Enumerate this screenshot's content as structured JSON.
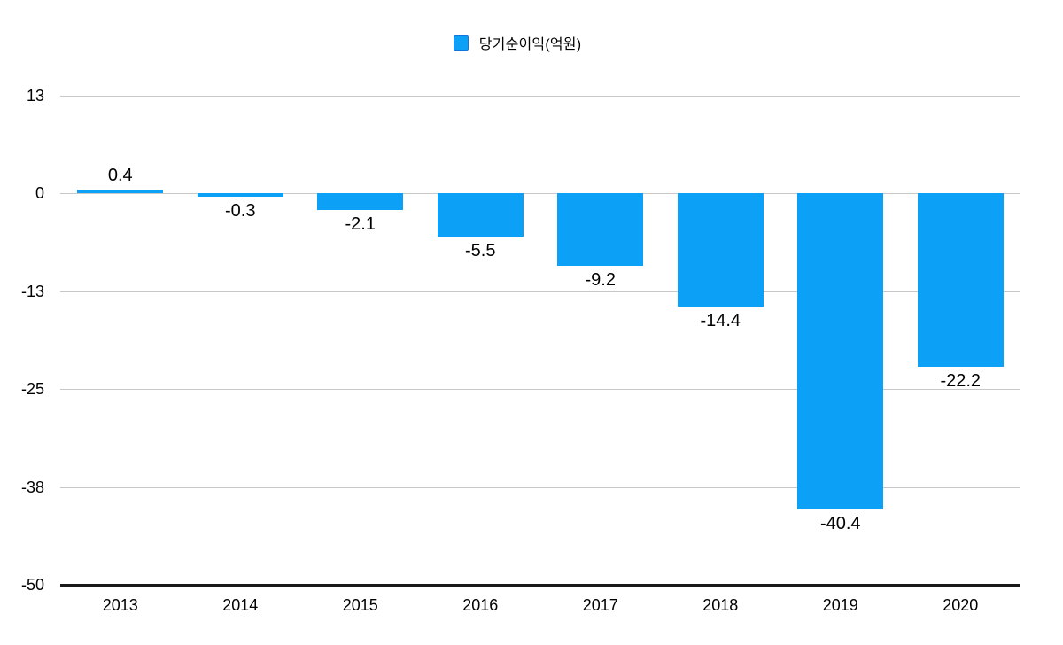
{
  "legend": {
    "label": "당기순이익(억원)",
    "swatch_color": "#0da0f7",
    "swatch_border": "#1274dd"
  },
  "chart_data": {
    "type": "bar",
    "title": "",
    "xlabel": "",
    "ylabel": "",
    "series_name": "당기순이익(억원)",
    "categories": [
      "2013",
      "2014",
      "2015",
      "2016",
      "2017",
      "2018",
      "2019",
      "2020"
    ],
    "values": [
      0.4,
      -0.3,
      -2.1,
      -5.5,
      -9.2,
      -14.4,
      -40.4,
      -22.2
    ],
    "value_labels": [
      "0.4",
      "-0.3",
      "-2.1",
      "-5.5",
      "-9.2",
      "-14.4",
      "-40.4",
      "-22.2"
    ],
    "ylim": [
      -50,
      12.5
    ],
    "y_ticks": [
      {
        "value": 12.5,
        "label": "13"
      },
      {
        "value": 0,
        "label": "0"
      },
      {
        "value": -12.5,
        "label": "-13"
      },
      {
        "value": -25,
        "label": "-25"
      },
      {
        "value": -37.5,
        "label": "-38"
      },
      {
        "value": -50,
        "label": "-50"
      }
    ],
    "grid": true,
    "legend_position": "top-center",
    "bar_color": "#0da0f7",
    "grid_color": "#c8c8c8",
    "axis_color": "#1a1a1a",
    "label_color": "#000000"
  }
}
